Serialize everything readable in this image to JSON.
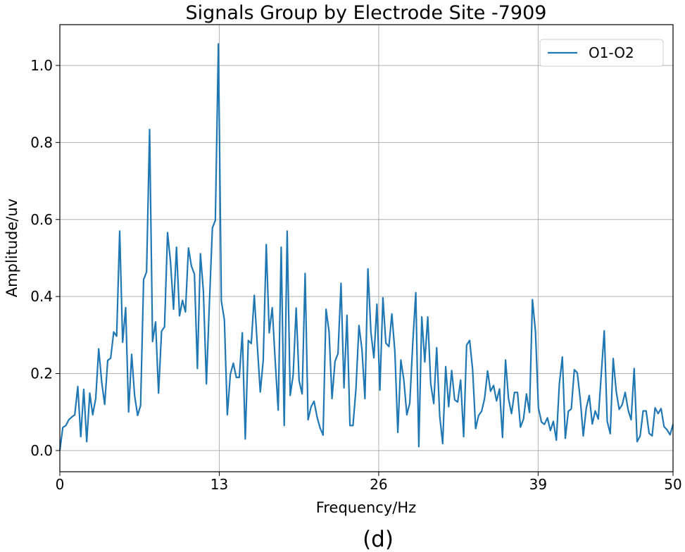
{
  "chart_data": {
    "type": "line",
    "title": "Signals Group by Electrode Site -7909",
    "xlabel": "Frequency/Hz",
    "ylabel": "Amplitude/uv",
    "caption": "(d)",
    "xlim": [
      0,
      50
    ],
    "ylim": [
      -0.055,
      1.106
    ],
    "xticks": [
      0,
      13,
      26,
      39,
      50
    ],
    "xtick_labels": [
      "0",
      "13",
      "26",
      "39",
      "50"
    ],
    "yticks": [
      0.0,
      0.2,
      0.4,
      0.6,
      0.8,
      1.0
    ],
    "ytick_labels": [
      "0.0",
      "0.2",
      "0.4",
      "0.6",
      "0.8",
      "1.0"
    ],
    "grid": true,
    "legend_position": "top-right",
    "x_start": 0,
    "x_end": 50,
    "series": [
      {
        "name": "O1-O2",
        "color": "#1f77b4",
        "values": [
          0.0,
          0.06,
          0.065,
          0.08,
          0.087,
          0.093,
          0.166,
          0.036,
          0.159,
          0.023,
          0.149,
          0.093,
          0.136,
          0.264,
          0.177,
          0.12,
          0.234,
          0.24,
          0.308,
          0.297,
          0.57,
          0.281,
          0.371,
          0.1,
          0.25,
          0.143,
          0.091,
          0.117,
          0.444,
          0.464,
          0.834,
          0.283,
          0.334,
          0.149,
          0.31,
          0.321,
          0.566,
          0.49,
          0.367,
          0.528,
          0.35,
          0.39,
          0.36,
          0.526,
          0.479,
          0.458,
          0.213,
          0.511,
          0.413,
          0.173,
          0.381,
          0.578,
          0.598,
          1.056,
          0.388,
          0.34,
          0.093,
          0.198,
          0.227,
          0.19,
          0.19,
          0.306,
          0.03,
          0.286,
          0.278,
          0.403,
          0.276,
          0.152,
          0.234,
          0.535,
          0.306,
          0.371,
          0.233,
          0.105,
          0.528,
          0.065,
          0.57,
          0.143,
          0.196,
          0.37,
          0.181,
          0.147,
          0.46,
          0.08,
          0.114,
          0.128,
          0.087,
          0.059,
          0.04,
          0.367,
          0.309,
          0.135,
          0.232,
          0.252,
          0.434,
          0.163,
          0.351,
          0.065,
          0.065,
          0.16,
          0.325,
          0.263,
          0.135,
          0.472,
          0.306,
          0.241,
          0.38,
          0.157,
          0.397,
          0.279,
          0.27,
          0.355,
          0.257,
          0.047,
          0.235,
          0.184,
          0.093,
          0.124,
          0.282,
          0.41,
          0.01,
          0.347,
          0.23,
          0.347,
          0.174,
          0.122,
          0.267,
          0.09,
          0.018,
          0.218,
          0.114,
          0.208,
          0.132,
          0.126,
          0.183,
          0.036,
          0.274,
          0.286,
          0.211,
          0.057,
          0.091,
          0.102,
          0.135,
          0.207,
          0.154,
          0.169,
          0.129,
          0.16,
          0.034,
          0.235,
          0.135,
          0.096,
          0.151,
          0.151,
          0.061,
          0.082,
          0.147,
          0.099,
          0.392,
          0.309,
          0.111,
          0.074,
          0.068,
          0.085,
          0.052,
          0.076,
          0.027,
          0.173,
          0.243,
          0.032,
          0.102,
          0.108,
          0.21,
          0.202,
          0.132,
          0.038,
          0.111,
          0.143,
          0.069,
          0.103,
          0.082,
          0.196,
          0.311,
          0.076,
          0.044,
          0.239,
          0.154,
          0.107,
          0.119,
          0.151,
          0.105,
          0.08,
          0.213,
          0.023,
          0.038,
          0.103,
          0.103,
          0.045,
          0.038,
          0.111,
          0.096,
          0.109,
          0.062,
          0.054,
          0.041,
          0.068
        ]
      }
    ]
  }
}
